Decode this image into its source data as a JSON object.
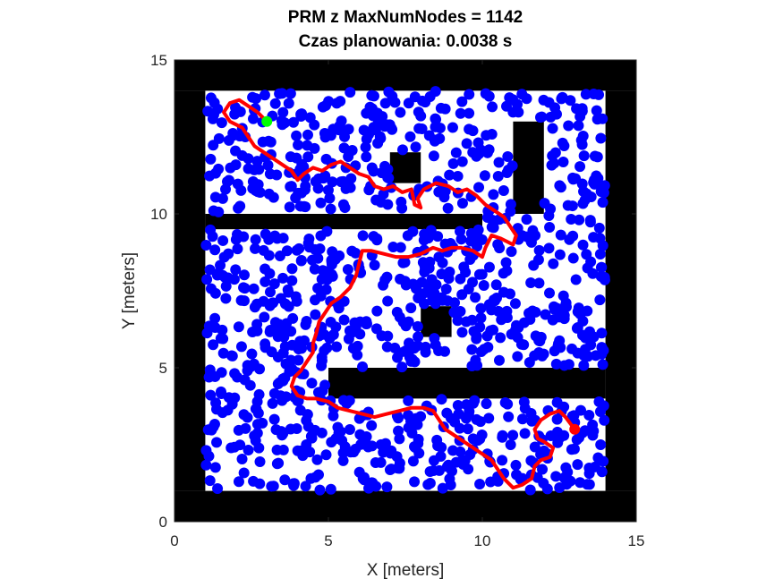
{
  "chart_data": {
    "type": "scatter",
    "title_line1": "PRM z MaxNumNodes = 1142",
    "title_line2": "Czas planowania: 0.0038 s",
    "xlabel": "X [meters]",
    "ylabel": "Y [meters]",
    "xlim": [
      0,
      15
    ],
    "ylim": [
      0,
      15
    ],
    "xticks": [
      "0",
      "5",
      "10",
      "15"
    ],
    "yticks": [
      "0",
      "5",
      "10",
      "15"
    ],
    "map": {
      "grid_size": [
        15,
        15
      ],
      "occupied": [
        [
          0,
          0,
          15,
          1
        ],
        [
          0,
          14,
          15,
          15
        ],
        [
          0,
          1,
          1,
          14
        ],
        [
          14,
          1,
          15,
          14
        ],
        [
          1,
          9.5,
          10,
          10
        ],
        [
          5,
          4,
          14,
          5
        ],
        [
          7,
          11,
          8,
          12
        ],
        [
          11,
          10,
          12,
          13
        ],
        [
          8,
          6,
          9,
          7
        ]
      ]
    },
    "nodes": {
      "count": 1142,
      "color": "#0000ff",
      "edge_color": "#0000ff"
    },
    "path": {
      "color": "#ff0000",
      "points": [
        [
          3.0,
          13.0
        ],
        [
          2.7,
          13.3
        ],
        [
          2.4,
          13.5
        ],
        [
          2.1,
          13.7
        ],
        [
          1.8,
          13.6
        ],
        [
          1.6,
          13.3
        ],
        [
          1.8,
          13.0
        ],
        [
          2.2,
          12.8
        ],
        [
          2.4,
          12.5
        ],
        [
          2.6,
          12.2
        ],
        [
          2.9,
          12.0
        ],
        [
          3.2,
          11.8
        ],
        [
          3.5,
          11.6
        ],
        [
          3.8,
          11.4
        ],
        [
          4.0,
          11.1
        ],
        [
          4.2,
          11.3
        ],
        [
          4.5,
          11.5
        ],
        [
          4.8,
          11.4
        ],
        [
          5.1,
          11.6
        ],
        [
          5.4,
          11.7
        ],
        [
          5.7,
          11.5
        ],
        [
          6.0,
          11.3
        ],
        [
          6.3,
          11.2
        ],
        [
          6.5,
          10.9
        ],
        [
          6.8,
          10.8
        ],
        [
          7.1,
          10.9
        ],
        [
          7.4,
          10.7
        ],
        [
          7.7,
          10.8
        ],
        [
          7.8,
          10.3
        ],
        [
          8.0,
          10.2
        ],
        [
          7.9,
          10.5
        ],
        [
          8.1,
          10.8
        ],
        [
          8.5,
          11.0
        ],
        [
          8.9,
          10.9
        ],
        [
          9.2,
          10.7
        ],
        [
          9.5,
          10.8
        ],
        [
          9.8,
          10.6
        ],
        [
          10.1,
          10.3
        ],
        [
          10.4,
          10.1
        ],
        [
          10.7,
          9.9
        ],
        [
          10.9,
          9.6
        ],
        [
          11.1,
          9.3
        ],
        [
          11.0,
          9.0
        ],
        [
          10.6,
          9.2
        ],
        [
          10.3,
          9.3
        ],
        [
          10.1,
          8.9
        ],
        [
          10.0,
          8.6
        ],
        [
          9.7,
          8.8
        ],
        [
          9.3,
          8.9
        ],
        [
          9.0,
          8.9
        ],
        [
          8.7,
          8.8
        ],
        [
          8.4,
          8.9
        ],
        [
          8.0,
          8.7
        ],
        [
          7.6,
          8.6
        ],
        [
          7.2,
          8.6
        ],
        [
          6.8,
          8.7
        ],
        [
          6.4,
          8.8
        ],
        [
          6.1,
          8.8
        ],
        [
          6.0,
          8.4
        ],
        [
          5.9,
          8.0
        ],
        [
          5.7,
          7.6
        ],
        [
          5.4,
          7.3
        ],
        [
          5.1,
          7.1
        ],
        [
          4.9,
          6.8
        ],
        [
          4.7,
          6.5
        ],
        [
          4.6,
          6.1
        ],
        [
          4.5,
          5.8
        ],
        [
          4.5,
          5.5
        ],
        [
          4.3,
          5.2
        ],
        [
          4.1,
          4.9
        ],
        [
          3.9,
          4.7
        ],
        [
          3.8,
          4.4
        ],
        [
          4.0,
          4.1
        ],
        [
          4.3,
          4.0
        ],
        [
          4.6,
          4.0
        ],
        [
          5.0,
          3.9
        ],
        [
          5.3,
          3.7
        ],
        [
          5.7,
          3.6
        ],
        [
          6.1,
          3.5
        ],
        [
          6.5,
          3.4
        ],
        [
          6.9,
          3.5
        ],
        [
          7.3,
          3.6
        ],
        [
          7.7,
          3.7
        ],
        [
          8.1,
          3.7
        ],
        [
          8.4,
          3.6
        ],
        [
          8.6,
          3.3
        ],
        [
          8.8,
          3.0
        ],
        [
          9.1,
          2.8
        ],
        [
          9.4,
          2.6
        ],
        [
          9.7,
          2.4
        ],
        [
          10.0,
          2.2
        ],
        [
          10.3,
          2.0
        ],
        [
          10.5,
          1.7
        ],
        [
          10.7,
          1.4
        ],
        [
          11.0,
          1.1
        ],
        [
          11.3,
          1.2
        ],
        [
          11.6,
          1.4
        ],
        [
          11.7,
          1.8
        ],
        [
          11.9,
          2.0
        ],
        [
          12.2,
          2.1
        ],
        [
          12.3,
          2.4
        ],
        [
          12.0,
          2.6
        ],
        [
          11.8,
          2.7
        ],
        [
          11.7,
          3.0
        ],
        [
          11.9,
          3.3
        ],
        [
          12.2,
          3.5
        ],
        [
          12.5,
          3.6
        ],
        [
          12.7,
          3.4
        ],
        [
          13.0,
          3.0
        ]
      ]
    },
    "start": {
      "x": 3.0,
      "y": 13.0,
      "color": "#00ff00"
    },
    "goal": {
      "x": 13.0,
      "y": 3.0,
      "color": "#ff0000"
    },
    "grid": false,
    "legend": false
  }
}
